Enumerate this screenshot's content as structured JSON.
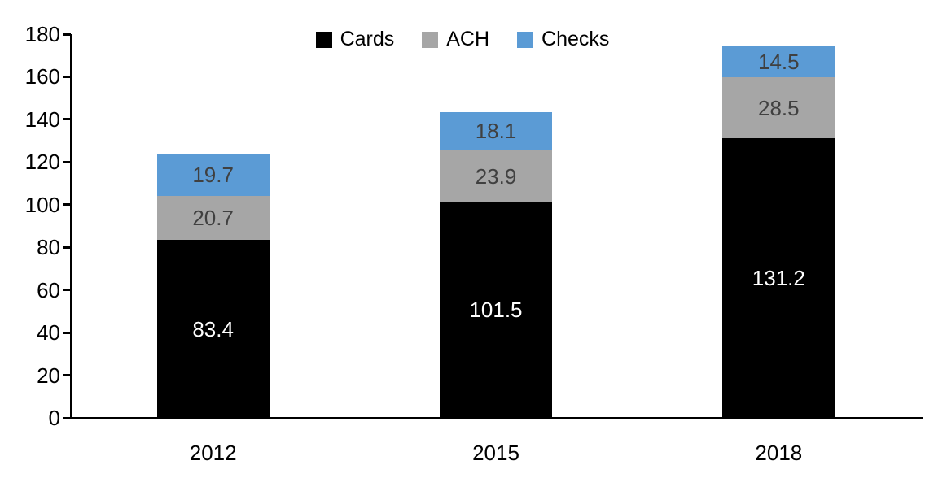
{
  "chart_data": {
    "type": "bar",
    "stacked": true,
    "title": "",
    "categories": [
      "2012",
      "2015",
      "2018"
    ],
    "series": [
      {
        "name": "Cards",
        "color": "#000000",
        "label_color": "#ffffff",
        "values": [
          83.4,
          101.5,
          131.2
        ]
      },
      {
        "name": "ACH",
        "color": "#a6a6a6",
        "label_color": "#404040",
        "values": [
          20.7,
          23.9,
          28.5
        ]
      },
      {
        "name": "Checks",
        "color": "#5b9bd5",
        "label_color": "#404040",
        "values": [
          19.7,
          18.1,
          14.5
        ]
      }
    ],
    "ylim": [
      0,
      180
    ],
    "ytick_step": 20,
    "ytick_labels": [
      "0",
      "20",
      "40",
      "60",
      "80",
      "100",
      "120",
      "140",
      "160",
      "180"
    ],
    "legend_position": "top-center",
    "legend_labels": [
      "Cards",
      "ACH",
      "Checks"
    ],
    "grid": false,
    "axis_color": "#000000",
    "label_decimals": 1
  }
}
